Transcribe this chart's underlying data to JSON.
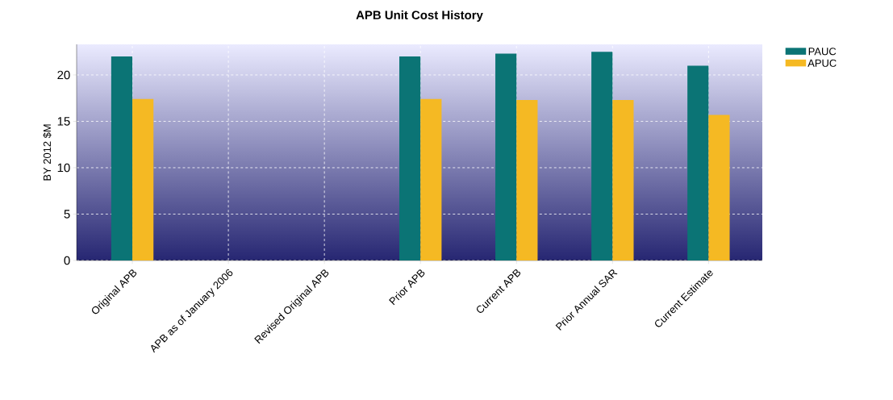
{
  "chart_data": {
    "type": "bar",
    "title": "APB Unit Cost History",
    "ylabel": "BY 2012 $M",
    "categories": [
      "Original APB",
      "APB as of January 2006",
      "Revised Original APB",
      "Prior APB",
      "Current APB",
      "Prior Annual SAR",
      "Current Estimate"
    ],
    "series": [
      {
        "name": "PAUC",
        "color": "#0b7475",
        "values": [
          22.0,
          null,
          null,
          22.0,
          22.3,
          22.5,
          21.0
        ]
      },
      {
        "name": "APUC",
        "color": "#f5b923",
        "values": [
          17.4,
          null,
          null,
          17.4,
          17.3,
          17.3,
          15.7
        ]
      }
    ],
    "ylim": [
      0,
      23.3
    ],
    "yticks": [
      0,
      5,
      10,
      15,
      20
    ],
    "grid": true,
    "legend": "top right"
  }
}
